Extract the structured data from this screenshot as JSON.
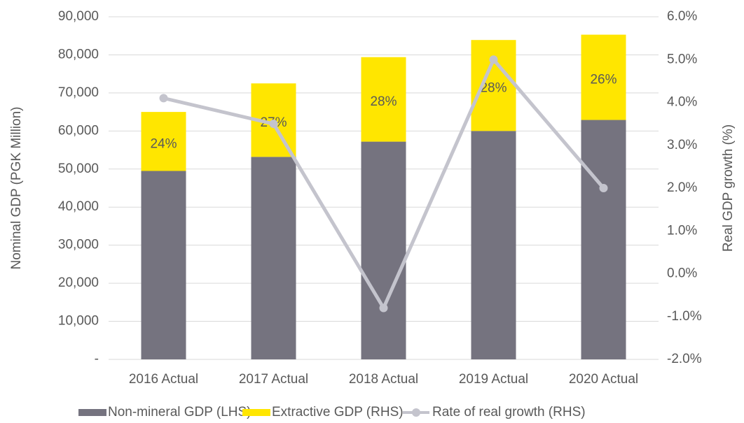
{
  "chart_data": {
    "type": "bar",
    "categories": [
      "2016 Actual",
      "2017 Actual",
      "2018 Actual",
      "2019 Actual",
      "2020 Actual"
    ],
    "series": [
      {
        "name": "Non-mineral GDP (LHS)",
        "color": "#75737f",
        "values": [
          49500,
          53200,
          57200,
          60000,
          62900
        ]
      },
      {
        "name": "Extractive GDP (RHS)",
        "color": "#ffe600",
        "values": [
          15500,
          19300,
          22200,
          23900,
          22400
        ],
        "share_labels": [
          "24%",
          "27%",
          "28%",
          "28%",
          "26%"
        ]
      },
      {
        "name": "Rate of real growth (RHS)",
        "color": "#c4c4cd",
        "axis": "y2",
        "type": "line",
        "values": [
          4.1,
          3.5,
          -0.8,
          5.0,
          2.0
        ]
      }
    ],
    "ylabel": "Nominal GDP (PGK Million)",
    "y2label": "Real GDP growth (%)",
    "ylim": [
      0,
      90000
    ],
    "yticks": [
      {
        "value": 0,
        "label": "-"
      },
      {
        "value": 10000,
        "label": "10,000"
      },
      {
        "value": 20000,
        "label": "20,000"
      },
      {
        "value": 30000,
        "label": "30,000"
      },
      {
        "value": 40000,
        "label": "40,000"
      },
      {
        "value": 50000,
        "label": "50,000"
      },
      {
        "value": 60000,
        "label": "60,000"
      },
      {
        "value": 70000,
        "label": "70,000"
      },
      {
        "value": 80000,
        "label": "80,000"
      },
      {
        "value": 90000,
        "label": "90,000"
      }
    ],
    "y2lim": [
      -2,
      6
    ],
    "y2ticks": [
      {
        "value": -2,
        "label": "-2.0%"
      },
      {
        "value": -1,
        "label": "-1.0%"
      },
      {
        "value": 0,
        "label": "0.0%"
      },
      {
        "value": 1,
        "label": "1.0%"
      },
      {
        "value": 2,
        "label": "2.0%"
      },
      {
        "value": 3,
        "label": "3.0%"
      },
      {
        "value": 4,
        "label": "4.0%"
      },
      {
        "value": 5,
        "label": "5.0%"
      },
      {
        "value": 6,
        "label": "6.0%"
      }
    ],
    "grid": true,
    "legend": "bottom"
  }
}
